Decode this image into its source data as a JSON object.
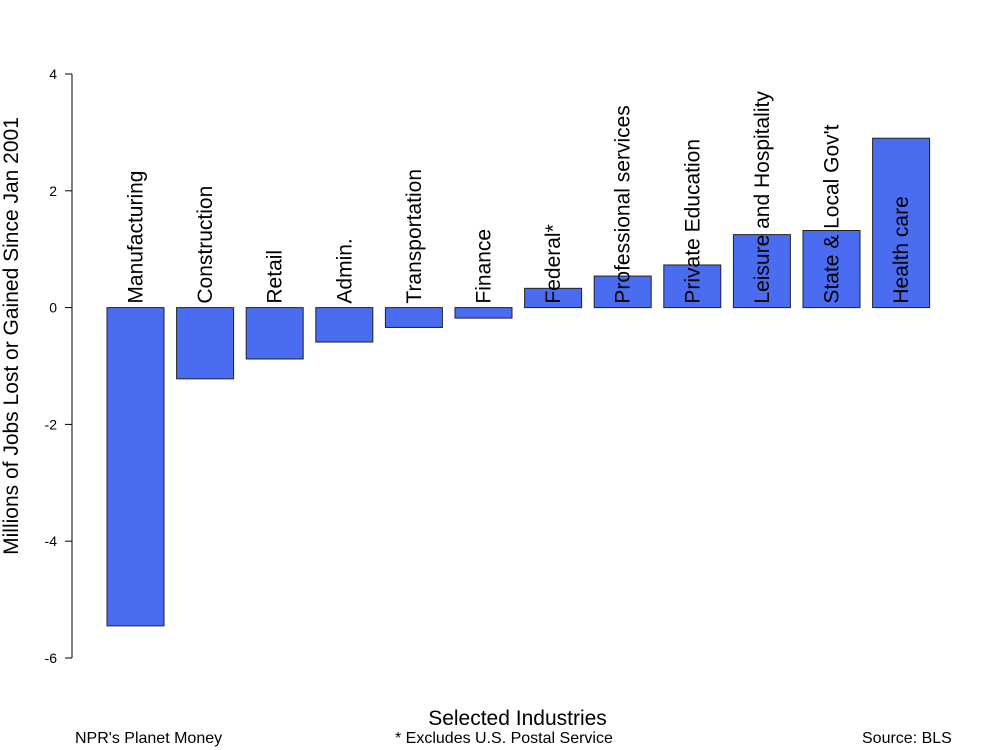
{
  "chart_data": {
    "type": "bar",
    "title": "",
    "xlabel": "Selected Industries",
    "ylabel": "Millions of Jobs Lost or Gained Since Jan 2001",
    "ylim": [
      -6,
      4
    ],
    "yticks": [
      4,
      2,
      0,
      -2,
      -4,
      -6
    ],
    "grid": false,
    "bar_color": "#4a6cf0",
    "categories": [
      "Manufacturing",
      "Construction",
      "Retail",
      "Admin.",
      "Transportation",
      "Finance",
      "Federal*",
      "Professional services",
      "Private Education",
      "Leisure and Hospitality",
      "State & Local Gov't",
      "Health care"
    ],
    "values": [
      -5.45,
      -1.22,
      -0.88,
      -0.59,
      -0.34,
      -0.18,
      0.33,
      0.54,
      0.73,
      1.25,
      1.32,
      2.9
    ]
  },
  "footer": {
    "left": "NPR's Planet Money",
    "center": "* Excludes U.S. Postal Service",
    "right": "Source: BLS"
  }
}
